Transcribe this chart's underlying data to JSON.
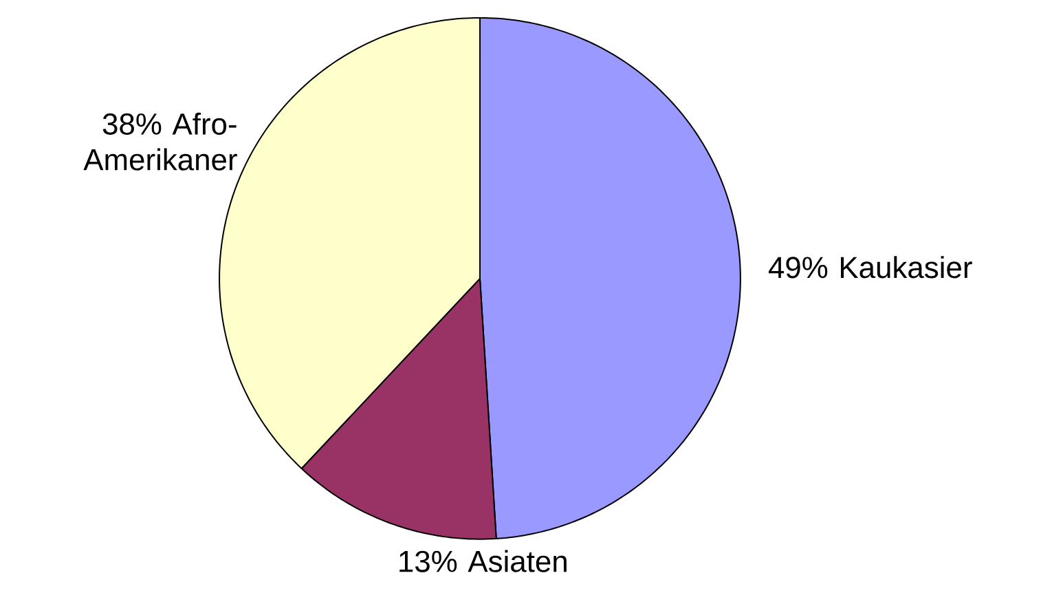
{
  "chart_data": {
    "type": "pie",
    "categories": [
      "Kaukasier",
      "Asiaten",
      "Afro-Amerikaner"
    ],
    "values": [
      49,
      13,
      38
    ],
    "value_labels": [
      "49%",
      "13%",
      "38%"
    ],
    "colors": [
      "#9999ff",
      "#993366",
      "#ffffcc"
    ]
  }
}
